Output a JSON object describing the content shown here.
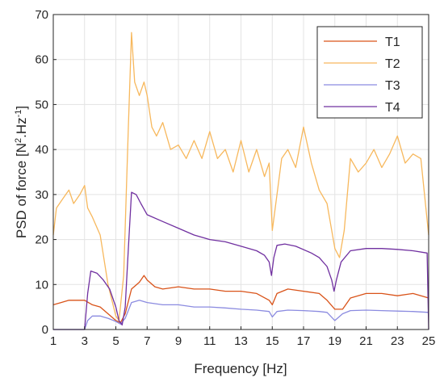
{
  "chart_data": {
    "type": "line",
    "xlabel": "Frequency [Hz]",
    "ylabel_main": "PSD of force [N",
    "ylabel_sup1": "2",
    "ylabel_mid": ".Hz",
    "ylabel_sup2": "-1",
    "ylabel_end": "]",
    "xlim": [
      1,
      25
    ],
    "ylim": [
      0,
      70
    ],
    "xticks": [
      1,
      3,
      5,
      7,
      9,
      11,
      13,
      15,
      17,
      19,
      21,
      23,
      25
    ],
    "yticks": [
      0,
      10,
      20,
      30,
      40,
      50,
      60,
      70
    ],
    "grid": true,
    "legend_position": "top-right",
    "series": [
      {
        "name": "T1",
        "color": "#d95319",
        "x": [
          1,
          1.5,
          2,
          2.5,
          3,
          3.5,
          4,
          4.5,
          5,
          5.3,
          5.6,
          6,
          6.5,
          6.8,
          7,
          7.5,
          8,
          9,
          10,
          11,
          12,
          13,
          14,
          14.8,
          15,
          15.3,
          16,
          17,
          18,
          18.5,
          19,
          19.5,
          20,
          21,
          22,
          23,
          24,
          25
        ],
        "y": [
          5.5,
          6,
          6.5,
          6.5,
          6.5,
          5.5,
          5,
          3.5,
          2,
          1.5,
          3.5,
          9,
          10.5,
          12,
          11,
          9.5,
          9,
          9.5,
          9,
          9,
          8.5,
          8.5,
          8,
          6.5,
          5.5,
          8,
          9,
          8.5,
          8,
          6.5,
          4.5,
          4.5,
          7,
          8,
          8,
          7.5,
          8,
          7
        ]
      },
      {
        "name": "T2",
        "color": "#f7b85d",
        "x": [
          1,
          1.2,
          1.6,
          2,
          2.3,
          2.7,
          3,
          3.2,
          3.5,
          4,
          4.5,
          5,
          5.2,
          5.5,
          5.8,
          6,
          6.2,
          6.5,
          6.8,
          7,
          7.3,
          7.6,
          8,
          8.5,
          9,
          9.5,
          10,
          10.5,
          11,
          11.5,
          12,
          12.5,
          13,
          13.5,
          14,
          14.5,
          14.8,
          15,
          15.3,
          15.6,
          16,
          16.5,
          17,
          17.5,
          18,
          18.5,
          19,
          19.3,
          19.6,
          20,
          20.5,
          21,
          21.5,
          22,
          22.5,
          23,
          23.5,
          24,
          24.5,
          25
        ],
        "y": [
          21,
          27,
          29,
          31,
          28,
          30,
          32,
          27,
          25,
          21,
          10,
          3,
          2,
          12,
          45,
          66,
          55,
          52,
          55,
          52,
          45,
          43,
          46,
          40,
          41,
          38,
          42,
          38,
          44,
          38,
          40,
          35,
          42,
          35,
          40,
          34,
          37,
          22,
          30,
          38,
          40,
          36,
          45,
          37,
          31,
          28,
          18,
          16,
          22,
          38,
          35,
          37,
          40,
          36,
          39,
          43,
          37,
          39,
          38,
          21
        ]
      },
      {
        "name": "T3",
        "color": "#8b8be0",
        "x": [
          1,
          3,
          3.2,
          3.5,
          4,
          4.5,
          5,
          5.3,
          5.6,
          6,
          6.5,
          7,
          8,
          9,
          10,
          11,
          12,
          13,
          14,
          14.8,
          15,
          15.3,
          16,
          17,
          18,
          18.5,
          19,
          19.5,
          20,
          21,
          22,
          23,
          24,
          25
        ],
        "y": [
          0,
          0,
          2,
          3,
          3,
          2.5,
          1.8,
          1.2,
          2.5,
          6,
          6.5,
          6,
          5.5,
          5.5,
          5,
          5,
          4.8,
          4.5,
          4.3,
          4,
          2.8,
          4,
          4.3,
          4.2,
          4,
          3.8,
          2,
          3.5,
          4.2,
          4.3,
          4.2,
          4.1,
          4,
          3.8
        ]
      },
      {
        "name": "T4",
        "color": "#7030a0",
        "x": [
          1,
          3,
          3.2,
          3.4,
          3.8,
          4.2,
          4.6,
          5,
          5.2,
          5.4,
          5.6,
          5.8,
          6,
          6.3,
          6.6,
          7,
          8,
          9,
          10,
          11,
          12,
          13,
          14,
          14.5,
          14.8,
          14.95,
          15.1,
          15.3,
          15.8,
          16.5,
          17.5,
          18,
          18.5,
          18.8,
          18.95,
          19.1,
          19.4,
          20,
          21,
          22,
          23,
          24,
          24.9,
          25
        ],
        "y": [
          0,
          0,
          8,
          13,
          12.5,
          11,
          9,
          5,
          2,
          1,
          5,
          18,
          30.5,
          30,
          28,
          25.5,
          24,
          22.5,
          21,
          20,
          19.5,
          18.5,
          17.5,
          16.5,
          15,
          12,
          16,
          18.7,
          19,
          18.5,
          17,
          16,
          14,
          11,
          8.5,
          11,
          15,
          17.5,
          18,
          18,
          17.8,
          17.5,
          17,
          0
        ]
      }
    ]
  }
}
